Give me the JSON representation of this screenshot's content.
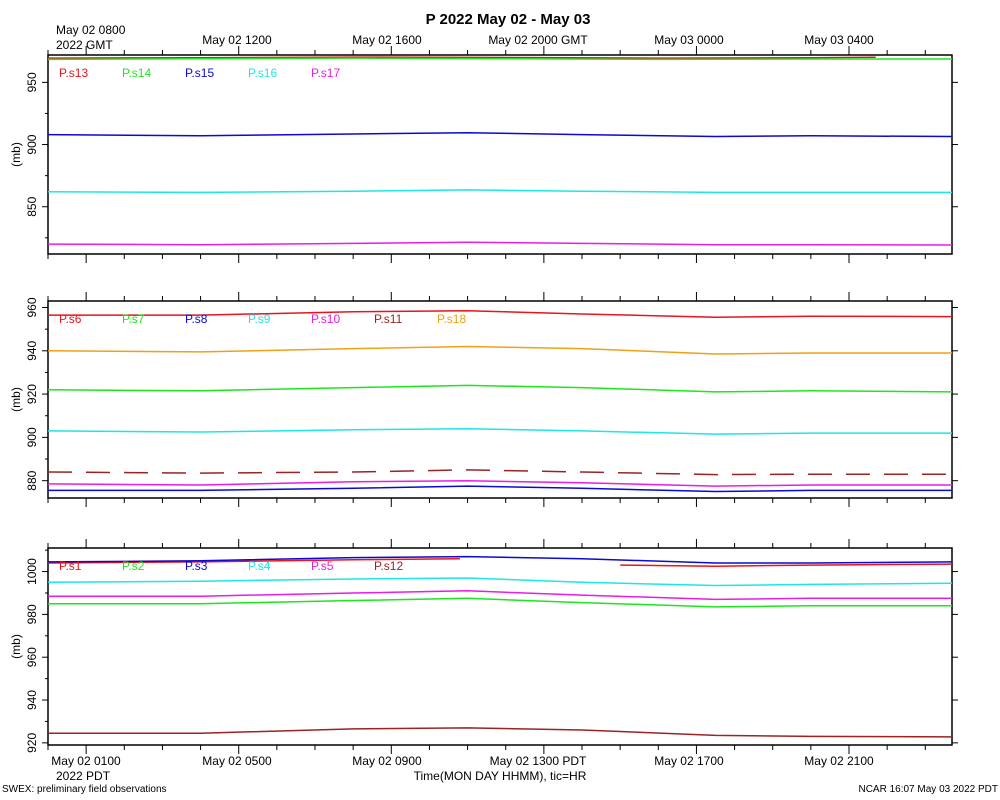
{
  "title": "P 2022 May 02 - May 03",
  "top_axis": {
    "first_label_line1": "May 02 0800",
    "first_label_line2": "2022 GMT",
    "labels": [
      "May 02 1200",
      "May 02 1600",
      "May 02 2000 GMT",
      "May 03 0000",
      "May 03 0400"
    ]
  },
  "bottom_axis": {
    "labels": [
      "May 02 0100",
      "May 02 0500",
      "May 02 0900",
      "May 02 1300 PDT",
      "May 02 1700",
      "May 02 2100"
    ],
    "year_label": "2022 PDT",
    "xlabel": "Time(MON DAY HHMM), tic=HR"
  },
  "footer": {
    "left": "SWEX: preliminary field observations",
    "right": "NCAR 16:07 May 03 2022 PDT"
  },
  "colors": {
    "red": "#e8141e",
    "green": "#1ee61e",
    "blue": "#0a0ad2",
    "cyan": "#1ee6e6",
    "magenta": "#e61ee6",
    "brown": "#9b2323",
    "orange": "#f0a014"
  },
  "chart_data": [
    {
      "type": "line",
      "ylabel": "(mb)",
      "ylim": [
        812,
        972
      ],
      "yticks": [
        850,
        900,
        950
      ],
      "x_unit": "hours since May 02 0000 PDT",
      "xlim": [
        0,
        23.7
      ],
      "legend": [
        "P.s13",
        "P.s14",
        "P.s15",
        "P.s16",
        "P.s17"
      ],
      "series": [
        {
          "name": "P.s13",
          "color": "red",
          "points": [
            [
              0,
              969.5
            ],
            [
              4,
              969.8
            ],
            [
              8,
              970.3
            ],
            [
              12,
              970
            ],
            [
              16,
              969.5
            ],
            [
              20,
              969.8
            ],
            [
              21.7,
              970.2
            ]
          ]
        },
        {
          "name": "P.s14",
          "color": "green",
          "points": [
            [
              0,
              968.5
            ],
            [
              4,
              969
            ],
            [
              8,
              969.5
            ],
            [
              12,
              969
            ],
            [
              16,
              968.5
            ],
            [
              20,
              968.8
            ],
            [
              23.7,
              968.8
            ]
          ]
        },
        {
          "name": "P.s15",
          "color": "blue",
          "points": [
            [
              0,
              908
            ],
            [
              4,
              907
            ],
            [
              8,
              908.5
            ],
            [
              11,
              909.5
            ],
            [
              14,
              908
            ],
            [
              17.5,
              906.5
            ],
            [
              20,
              907
            ],
            [
              23.7,
              906.5
            ]
          ]
        },
        {
          "name": "P.s16",
          "color": "cyan",
          "points": [
            [
              0,
              862
            ],
            [
              4,
              861.5
            ],
            [
              8,
              862.5
            ],
            [
              11,
              863.5
            ],
            [
              14,
              862.5
            ],
            [
              17.5,
              861.5
            ],
            [
              20,
              861.5
            ],
            [
              23.7,
              861.5
            ]
          ]
        },
        {
          "name": "P.s17",
          "color": "magenta",
          "points": [
            [
              0,
              820
            ],
            [
              4,
              819.5
            ],
            [
              8,
              820.5
            ],
            [
              11,
              821.5
            ],
            [
              14,
              820.5
            ],
            [
              17.5,
              819.5
            ],
            [
              20,
              819.5
            ],
            [
              23.7,
              819.2
            ]
          ]
        }
      ]
    },
    {
      "type": "line",
      "ylabel": "(mb)",
      "ylim": [
        872,
        963
      ],
      "yticks": [
        880,
        900,
        920,
        940,
        960
      ],
      "x_unit": "hours since May 02 0000 PDT",
      "xlim": [
        0,
        23.7
      ],
      "legend": [
        "P.s6",
        "P.s7",
        "P.s8",
        "P.s9",
        "P.s10",
        "P.s11",
        "P.s18"
      ],
      "series": [
        {
          "name": "P.s6",
          "color": "red",
          "points": [
            [
              0,
              956.5
            ],
            [
              4,
              956.5
            ],
            [
              8,
              958
            ],
            [
              11,
              958.5
            ],
            [
              14,
              957
            ],
            [
              17.5,
              955.5
            ],
            [
              20,
              956
            ],
            [
              23.7,
              955.8
            ]
          ]
        },
        {
          "name": "P.s18",
          "color": "orange",
          "points": [
            [
              0,
              940
            ],
            [
              4,
              939.5
            ],
            [
              8,
              941
            ],
            [
              11,
              942
            ],
            [
              14,
              941
            ],
            [
              17.5,
              938.5
            ],
            [
              20,
              939
            ],
            [
              23.7,
              939
            ]
          ]
        },
        {
          "name": "P.s7",
          "color": "green",
          "points": [
            [
              0,
              922
            ],
            [
              4,
              921.5
            ],
            [
              8,
              923
            ],
            [
              11,
              924
            ],
            [
              14,
              923
            ],
            [
              17.5,
              921
            ],
            [
              20,
              921.5
            ],
            [
              23.7,
              921
            ]
          ]
        },
        {
          "name": "P.s9",
          "color": "cyan",
          "points": [
            [
              0,
              903
            ],
            [
              4,
              902.5
            ],
            [
              8,
              903.5
            ],
            [
              11,
              904
            ],
            [
              14,
              903
            ],
            [
              17.5,
              901.5
            ],
            [
              20,
              902
            ],
            [
              23.7,
              902
            ]
          ]
        },
        {
          "name": "P.s11",
          "color": "brown",
          "dashed": true,
          "points": [
            [
              0,
              884
            ],
            [
              4,
              883.5
            ],
            [
              8,
              884
            ],
            [
              11,
              885
            ],
            [
              14,
              884
            ],
            [
              17.5,
              882.8
            ],
            [
              20,
              883
            ],
            [
              23.7,
              883
            ]
          ]
        },
        {
          "name": "P.s10",
          "color": "magenta",
          "points": [
            [
              0,
              878.5
            ],
            [
              4,
              878
            ],
            [
              8,
              879.5
            ],
            [
              11,
              880
            ],
            [
              14,
              879
            ],
            [
              17.5,
              877.5
            ],
            [
              20,
              878
            ],
            [
              23.7,
              878
            ]
          ]
        },
        {
          "name": "P.s8",
          "color": "blue",
          "points": [
            [
              0,
              875.5
            ],
            [
              4,
              875.5
            ],
            [
              8,
              876.5
            ],
            [
              11,
              877.5
            ],
            [
              14,
              876.5
            ],
            [
              17.5,
              875
            ],
            [
              20,
              875.5
            ],
            [
              23.7,
              875.5
            ]
          ]
        }
      ]
    },
    {
      "type": "line",
      "ylabel": "(mb)",
      "ylim": [
        919,
        1011
      ],
      "yticks": [
        920,
        940,
        960,
        980,
        1000
      ],
      "x_unit": "hours since May 02 0000 PDT",
      "xlim": [
        0,
        23.7
      ],
      "legend": [
        "P.s1",
        "P.s2",
        "P.s3",
        "P.s4",
        "P.s5",
        "P.s12"
      ],
      "series": [
        {
          "name": "P.s1",
          "color": "red",
          "points": [
            [
              0,
              1004
            ],
            [
              4,
              1004.5
            ],
            [
              8,
              1005.5
            ],
            [
              10.8,
              1006
            ]
          ]
        },
        {
          "name": "P.s1",
          "color": "red",
          "points": [
            [
              15,
              1003
            ],
            [
              17.5,
              1002.5
            ],
            [
              20,
              1003
            ],
            [
              23.7,
              1003.5
            ]
          ]
        },
        {
          "name": "P.s3",
          "color": "blue",
          "points": [
            [
              0,
              1004.5
            ],
            [
              4,
              1005
            ],
            [
              8,
              1006.5
            ],
            [
              11,
              1007
            ],
            [
              14,
              1006
            ],
            [
              17.5,
              1004
            ],
            [
              20,
              1004
            ],
            [
              23.7,
              1004.5
            ]
          ]
        },
        {
          "name": "P.s4",
          "color": "cyan",
          "points": [
            [
              0,
              995
            ],
            [
              4,
              995.5
            ],
            [
              8,
              996.5
            ],
            [
              11,
              997
            ],
            [
              14,
              995
            ],
            [
              17.5,
              993.5
            ],
            [
              20,
              994
            ],
            [
              23.7,
              994.5
            ]
          ]
        },
        {
          "name": "P.s5",
          "color": "magenta",
          "points": [
            [
              0,
              988.5
            ],
            [
              4,
              988.5
            ],
            [
              8,
              990
            ],
            [
              11,
              991
            ],
            [
              14,
              989
            ],
            [
              17.5,
              987
            ],
            [
              20,
              987.5
            ],
            [
              23.7,
              987.5
            ]
          ]
        },
        {
          "name": "P.s2",
          "color": "green",
          "points": [
            [
              0,
              985
            ],
            [
              4,
              985
            ],
            [
              8,
              986.5
            ],
            [
              11,
              987.5
            ],
            [
              14,
              985.5
            ],
            [
              17.5,
              983.5
            ],
            [
              20,
              984
            ],
            [
              23.7,
              984
            ]
          ]
        },
        {
          "name": "P.s12",
          "color": "brown",
          "points": [
            [
              0,
              924.5
            ],
            [
              4,
              924.5
            ],
            [
              8,
              926.5
            ],
            [
              11,
              927
            ],
            [
              14,
              926
            ],
            [
              17.5,
              923.5
            ],
            [
              20,
              923
            ],
            [
              23.7,
              922.8
            ]
          ]
        }
      ]
    }
  ]
}
